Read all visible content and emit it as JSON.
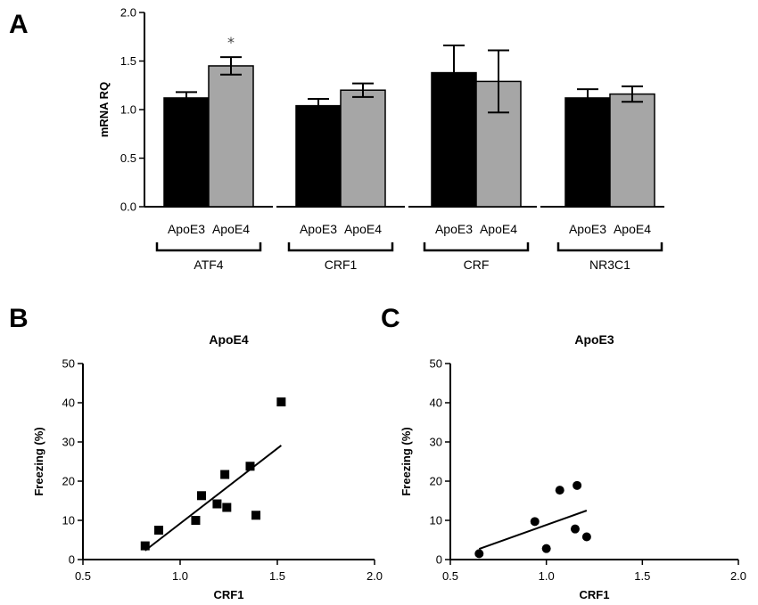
{
  "panels": {
    "a": "A",
    "b": "B",
    "c": "C"
  },
  "colors": {
    "apoe3": "#000000",
    "apoe4": "#a6a6a6",
    "axis": "#000000",
    "significance": "#444444"
  },
  "chart_data": [
    {
      "type": "bar",
      "panel": "A",
      "title": "",
      "ylabel": "mRNA RQ",
      "ylim": [
        0,
        2.0
      ],
      "yticks": [
        "0.0",
        "0.5",
        "1.0",
        "1.5",
        "2.0"
      ],
      "yticks_values": [
        0,
        0.5,
        1.0,
        1.5,
        2.0
      ],
      "groups": [
        {
          "name": "ATF4",
          "bars": [
            {
              "label": "ApoE3",
              "value": 1.12,
              "err": 0.06
            },
            {
              "label": "ApoE4",
              "value": 1.45,
              "err": 0.09,
              "significance": "*"
            }
          ]
        },
        {
          "name": "CRF1",
          "bars": [
            {
              "label": "ApoE3",
              "value": 1.04,
              "err": 0.07
            },
            {
              "label": "ApoE4",
              "value": 1.2,
              "err": 0.07
            }
          ]
        },
        {
          "name": "CRF",
          "bars": [
            {
              "label": "ApoE3",
              "value": 1.38,
              "err": 0.28
            },
            {
              "label": "ApoE4",
              "value": 1.29,
              "err": 0.32
            }
          ]
        },
        {
          "name": "NR3C1",
          "bars": [
            {
              "label": "ApoE3",
              "value": 1.12,
              "err": 0.09
            },
            {
              "label": "ApoE4",
              "value": 1.16,
              "err": 0.08
            }
          ]
        }
      ]
    },
    {
      "type": "scatter",
      "panel": "B",
      "title": "ApoE4",
      "xlabel": "CRF1",
      "ylabel": "Freezing (%)",
      "xlim": [
        0.5,
        2.0
      ],
      "ylim": [
        0,
        50
      ],
      "xticks": [
        "0.5",
        "1.0",
        "1.5",
        "2.0"
      ],
      "xticks_values": [
        0.5,
        1.0,
        1.5,
        2.0
      ],
      "yticks": [
        "0",
        "10",
        "20",
        "30",
        "40",
        "50"
      ],
      "yticks_values": [
        0,
        10,
        20,
        30,
        40,
        50
      ],
      "marker": "square",
      "points": [
        {
          "x": 0.82,
          "y": 3.5
        },
        {
          "x": 0.89,
          "y": 7.5
        },
        {
          "x": 1.08,
          "y": 10.0
        },
        {
          "x": 1.11,
          "y": 16.3
        },
        {
          "x": 1.19,
          "y": 14.2
        },
        {
          "x": 1.23,
          "y": 21.7
        },
        {
          "x": 1.24,
          "y": 13.3
        },
        {
          "x": 1.36,
          "y": 23.8
        },
        {
          "x": 1.39,
          "y": 11.3
        },
        {
          "x": 1.52,
          "y": 40.2
        }
      ],
      "fit_line": {
        "x": [
          0.82,
          1.52
        ],
        "y": [
          2.3,
          29.1
        ]
      }
    },
    {
      "type": "scatter",
      "panel": "C",
      "title": "ApoE3",
      "xlabel": "CRF1",
      "ylabel": "Freezing (%)",
      "xlim": [
        0.5,
        2.0
      ],
      "ylim": [
        0,
        50
      ],
      "xticks": [
        "0.5",
        "1.0",
        "1.5",
        "2.0"
      ],
      "xticks_values": [
        0.5,
        1.0,
        1.5,
        2.0
      ],
      "yticks": [
        "0",
        "10",
        "20",
        "30",
        "40",
        "50"
      ],
      "yticks_values": [
        0,
        10,
        20,
        30,
        40,
        50
      ],
      "marker": "circle",
      "points": [
        {
          "x": 0.65,
          "y": 1.5
        },
        {
          "x": 0.94,
          "y": 9.7
        },
        {
          "x": 1.0,
          "y": 2.8
        },
        {
          "x": 1.07,
          "y": 17.7
        },
        {
          "x": 1.15,
          "y": 7.8
        },
        {
          "x": 1.16,
          "y": 18.9
        },
        {
          "x": 1.21,
          "y": 5.8
        }
      ],
      "fit_line": {
        "x": [
          0.65,
          1.21
        ],
        "y": [
          2.7,
          12.5
        ]
      }
    }
  ]
}
